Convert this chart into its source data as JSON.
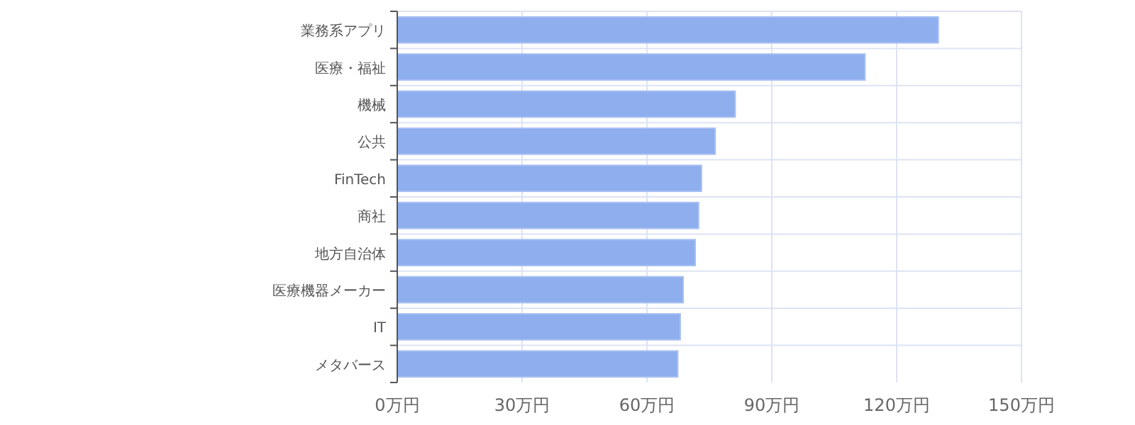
{
  "chart_data": {
    "type": "bar",
    "orientation": "horizontal",
    "categories": [
      "業務系アプリ",
      "医療・福祉",
      "機械",
      "公共",
      "FinTech",
      "商社",
      "地方自治体",
      "医療機器メーカー",
      "IT",
      "メタバース"
    ],
    "values": [
      130,
      112.4,
      81.2,
      76.4,
      73.1,
      72.4,
      71.6,
      68.7,
      68.0,
      67.4
    ],
    "color": "#8eaeee",
    "xlim": [
      0,
      150
    ],
    "xticks": [
      {
        "value": 0,
        "label": "0万円"
      },
      {
        "value": 30,
        "label": "30万円"
      },
      {
        "value": 60,
        "label": "60万円"
      },
      {
        "value": 90,
        "label": "90万円"
      },
      {
        "value": 120,
        "label": "120万円"
      },
      {
        "value": 150,
        "label": "150万円"
      }
    ],
    "grid": true
  }
}
